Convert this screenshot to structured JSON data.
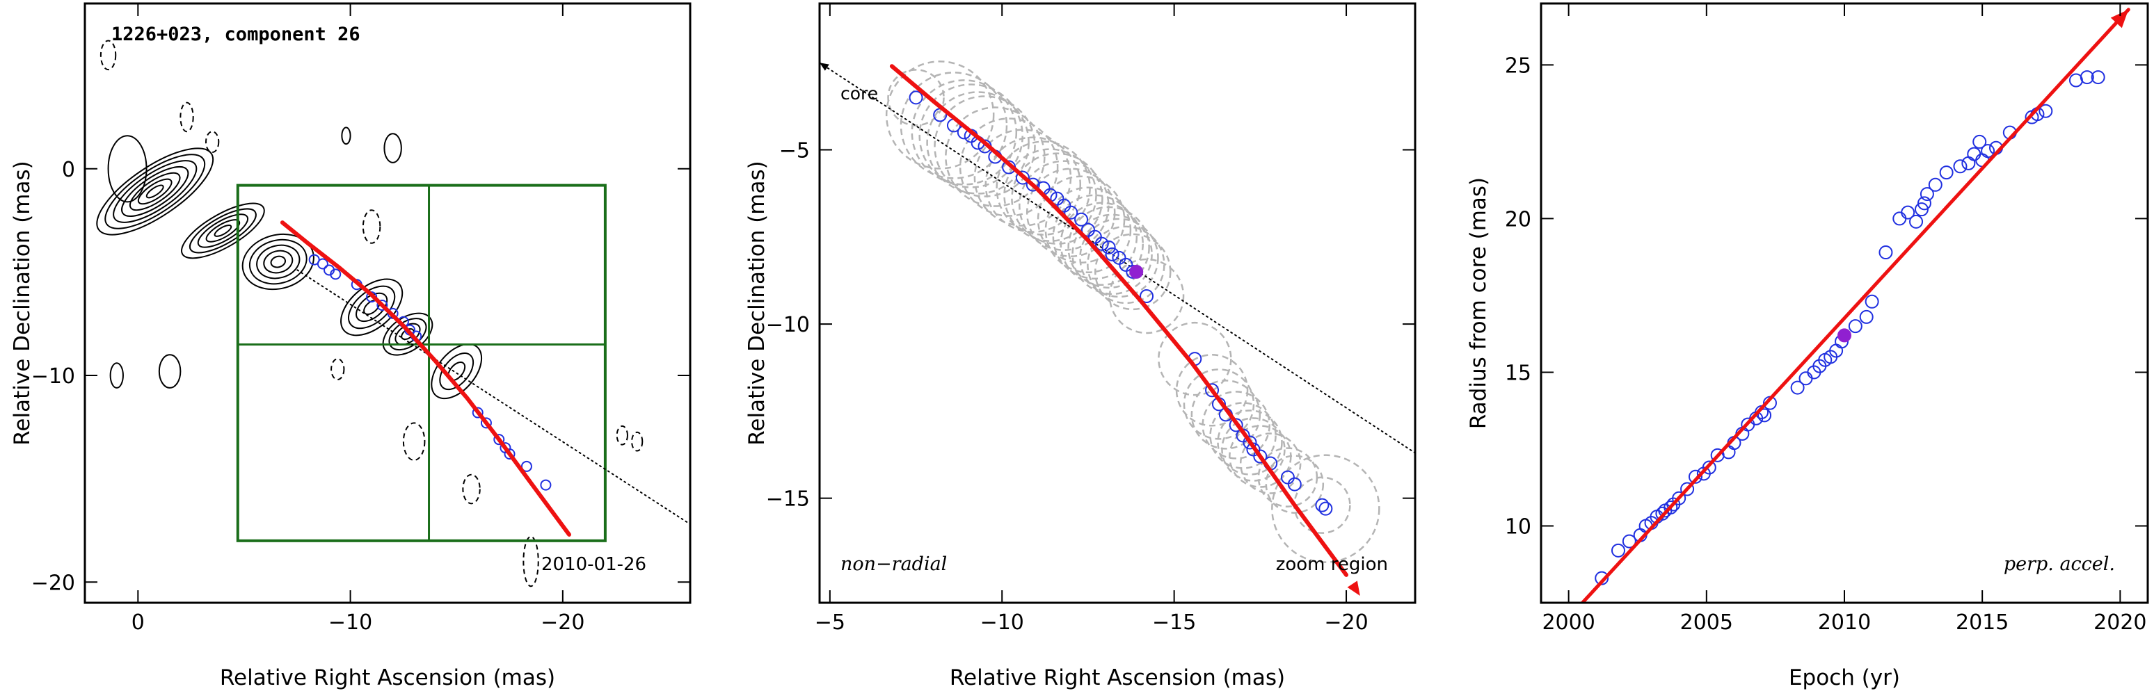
{
  "chart_data": [
    {
      "type": "contour-map",
      "title": "1226+023, component 26",
      "xlabel": "Relative Right Ascension (mas)",
      "ylabel": "Relative Declination (mas)",
      "xlim": [
        2.5,
        -26
      ],
      "ylim": [
        -21,
        8
      ],
      "xticks": [
        0,
        -10,
        -20
      ],
      "yticks": [
        0,
        -10,
        -20
      ],
      "annotation": "2010-01-26",
      "zoom_box": {
        "x": [
          -4.7,
          -22
        ],
        "y": [
          -0.8,
          -18
        ],
        "grid_x": -13.7,
        "grid_y": -8.5
      },
      "core_direction_line": {
        "x": [
          -7.5,
          -26
        ],
        "y": [
          -4.9,
          -17.2
        ]
      },
      "fit_curve": {
        "x": [
          -6.8,
          -8,
          -9.5,
          -11,
          -12.5,
          -14,
          -15.5,
          -17,
          -18.5,
          -20.3
        ],
        "y": [
          -2.6,
          -3.6,
          -4.8,
          -6.1,
          -7.6,
          -9.3,
          -11.1,
          -13.1,
          -15.2,
          -17.7
        ]
      },
      "positions": {
        "x": [
          -8.3,
          -8.7,
          -9.0,
          -9.3,
          -10.3,
          -11.0,
          -11.5,
          -12.0,
          -12.5,
          -12.8,
          -13.1,
          -16.0,
          -16.4,
          -17.0,
          -17.3,
          -17.5,
          -18.3,
          -19.2
        ],
        "y": [
          -4.4,
          -4.6,
          -4.9,
          -5.1,
          -5.6,
          -6.2,
          -6.6,
          -7.0,
          -7.4,
          -7.8,
          -8.1,
          -11.8,
          -12.3,
          -13.1,
          -13.5,
          -13.8,
          -14.4,
          -15.3
        ]
      },
      "contours": [
        {
          "x": 0.5,
          "y": 0.0,
          "rx": 0.9,
          "ry": 1.6,
          "rot": 0
        },
        {
          "x": -9.8,
          "y": 1.6,
          "rx": 0.2,
          "ry": 0.4,
          "rot": 0
        },
        {
          "x": -12.0,
          "y": 1.0,
          "rx": 0.4,
          "ry": 0.7,
          "rot": 0
        },
        {
          "x": 1.0,
          "y": -10.0,
          "rx": 0.3,
          "ry": 0.6,
          "rot": 0
        },
        {
          "x": -1.5,
          "y": -9.8,
          "rx": 0.5,
          "ry": 0.8,
          "rot": 0
        }
      ],
      "dashed_contours": [
        {
          "x": 1.4,
          "y": 5.5,
          "rx": 0.35,
          "ry": 0.7
        },
        {
          "x": -2.3,
          "y": 2.5,
          "rx": 0.3,
          "ry": 0.7
        },
        {
          "x": -3.5,
          "y": 1.3,
          "rx": 0.3,
          "ry": 0.5
        },
        {
          "x": -11.0,
          "y": -2.8,
          "rx": 0.4,
          "ry": 0.8
        },
        {
          "x": -9.4,
          "y": -9.7,
          "rx": 0.3,
          "ry": 0.5
        },
        {
          "x": -13.0,
          "y": -13.2,
          "rx": 0.5,
          "ry": 0.9
        },
        {
          "x": -15.7,
          "y": -15.5,
          "rx": 0.4,
          "ry": 0.7
        },
        {
          "x": -18.5,
          "y": -19.0,
          "rx": 0.35,
          "ry": 1.2
        },
        {
          "x": -22.8,
          "y": -12.9,
          "rx": 0.25,
          "ry": 0.45
        },
        {
          "x": -23.5,
          "y": -13.2,
          "rx": 0.25,
          "ry": 0.45
        }
      ]
    },
    {
      "type": "scatter",
      "xlabel": "Relative Right Ascension (mas)",
      "ylabel": "Relative Declination (mas)",
      "xlim": [
        -4.7,
        -22
      ],
      "ylim": [
        -18,
        -0.8
      ],
      "xticks": [
        -5,
        -10,
        -15,
        -20
      ],
      "yticks": [
        -5,
        -10,
        -15
      ],
      "label_left": "non−radial",
      "label_right": "zoom region",
      "core_label": "core",
      "core_line": {
        "x": [
          -4.7,
          -22
        ],
        "y": [
          -2.5,
          -13.7
        ]
      },
      "fit_curve": {
        "x": [
          -6.8,
          -8,
          -9.5,
          -11,
          -12.5,
          -14,
          -15.5,
          -17,
          -18.5,
          -20.0
        ],
        "y": [
          -2.6,
          -3.6,
          -4.8,
          -6.1,
          -7.6,
          -9.3,
          -11.1,
          -13.1,
          -15.2,
          -17.2
        ]
      },
      "points": {
        "x": [
          -7.5,
          -8.2,
          -8.6,
          -8.9,
          -9.1,
          -9.3,
          -9.5,
          -9.8,
          -10.2,
          -10.6,
          -10.9,
          -11.2,
          -11.4,
          -11.6,
          -11.8,
          -12.0,
          -12.3,
          -12.5,
          -12.7,
          -12.9,
          -13.1,
          -13.2,
          -13.4,
          -13.6,
          -13.8,
          -14.2,
          -15.6,
          -16.1,
          -16.3,
          -16.5,
          -16.8,
          -17.0,
          -17.2,
          -17.3,
          -17.5,
          -17.8,
          -18.3,
          -18.5,
          -19.3,
          -19.4
        ],
        "y": [
          -3.5,
          -4.0,
          -4.3,
          -4.5,
          -4.6,
          -4.8,
          -4.9,
          -5.2,
          -5.5,
          -5.8,
          -6.0,
          -6.1,
          -6.3,
          -6.4,
          -6.6,
          -6.8,
          -7.0,
          -7.3,
          -7.5,
          -7.7,
          -7.8,
          -8.0,
          -8.1,
          -8.3,
          -8.5,
          -9.2,
          -11.0,
          -11.9,
          -12.3,
          -12.6,
          -12.9,
          -13.2,
          -13.4,
          -13.6,
          -13.8,
          -14.0,
          -14.4,
          -14.6,
          -15.2,
          -15.3
        ]
      },
      "highlight": {
        "x": -13.9,
        "y": -8.5
      }
    },
    {
      "type": "scatter",
      "xlabel": "Epoch (yr)",
      "ylabel": "Radius from core (mas)",
      "xlim": [
        1999,
        2021
      ],
      "ylim": [
        7.5,
        27
      ],
      "xticks": [
        2000,
        2005,
        2010,
        2015,
        2020
      ],
      "yticks": [
        10,
        15,
        20,
        25
      ],
      "label_right": "perp. accel.",
      "fit_line": {
        "x": [
          2000.5,
          2020.3
        ],
        "y": [
          7.5,
          26.8
        ]
      },
      "points": {
        "x": [
          2001.2,
          2001.8,
          2002.2,
          2002.6,
          2002.8,
          2003.0,
          2003.2,
          2003.4,
          2003.5,
          2003.7,
          2003.8,
          2004.0,
          2004.3,
          2004.6,
          2004.9,
          2005.1,
          2005.4,
          2005.8,
          2006.0,
          2006.3,
          2006.5,
          2006.8,
          2007.0,
          2007.1,
          2007.3,
          2008.3,
          2008.6,
          2008.9,
          2009.1,
          2009.3,
          2009.5,
          2009.7,
          2009.9,
          2010.4,
          2010.8,
          2011.0,
          2011.5,
          2012.0,
          2012.3,
          2012.6,
          2012.8,
          2012.9,
          2013.0,
          2013.3,
          2013.7,
          2014.2,
          2014.5,
          2014.7,
          2014.9,
          2015.0,
          2015.2,
          2015.5,
          2016.0,
          2016.8,
          2017.0,
          2017.3,
          2018.4,
          2018.8,
          2019.2
        ],
        "y": [
          8.3,
          9.2,
          9.5,
          9.7,
          10.0,
          10.1,
          10.3,
          10.4,
          10.5,
          10.6,
          10.7,
          10.9,
          11.2,
          11.6,
          11.7,
          11.9,
          12.3,
          12.4,
          12.7,
          13.0,
          13.3,
          13.5,
          13.7,
          13.6,
          14.0,
          14.5,
          14.8,
          15.0,
          15.2,
          15.4,
          15.5,
          15.7,
          16.0,
          16.5,
          16.8,
          17.3,
          18.9,
          20.0,
          20.2,
          19.9,
          20.3,
          20.5,
          20.8,
          21.1,
          21.5,
          21.7,
          21.8,
          22.1,
          22.5,
          21.9,
          22.2,
          22.3,
          22.8,
          23.3,
          23.4,
          23.5,
          24.5,
          24.6,
          24.6
        ]
      },
      "highlight": {
        "x": 2010.0,
        "y": 16.2
      }
    }
  ],
  "colors": {
    "points": "#2030e0",
    "highlight": "#9020d0",
    "fit": "#ee1111",
    "box": "#1a6e1a",
    "halo": "#b4b4b4"
  }
}
